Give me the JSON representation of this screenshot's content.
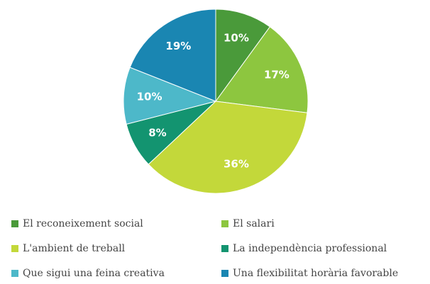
{
  "chart_data": {
    "type": "pie",
    "categories": [
      "El reconeixement social",
      "El salari",
      "L'ambient de treball",
      "La independència professional",
      "Que sigui una feina creativa",
      "Una flexibilitat horària favorable"
    ],
    "values": [
      10,
      17,
      36,
      8,
      10,
      19
    ],
    "value_labels": [
      "10%",
      "17%",
      "36%",
      "8%",
      "10%",
      "19%"
    ],
    "colors": [
      "#4a9a3a",
      "#8dc63f",
      "#c3d83a",
      "#139470",
      "#4db8c9",
      "#1a86b2"
    ],
    "legend": "bottom"
  }
}
